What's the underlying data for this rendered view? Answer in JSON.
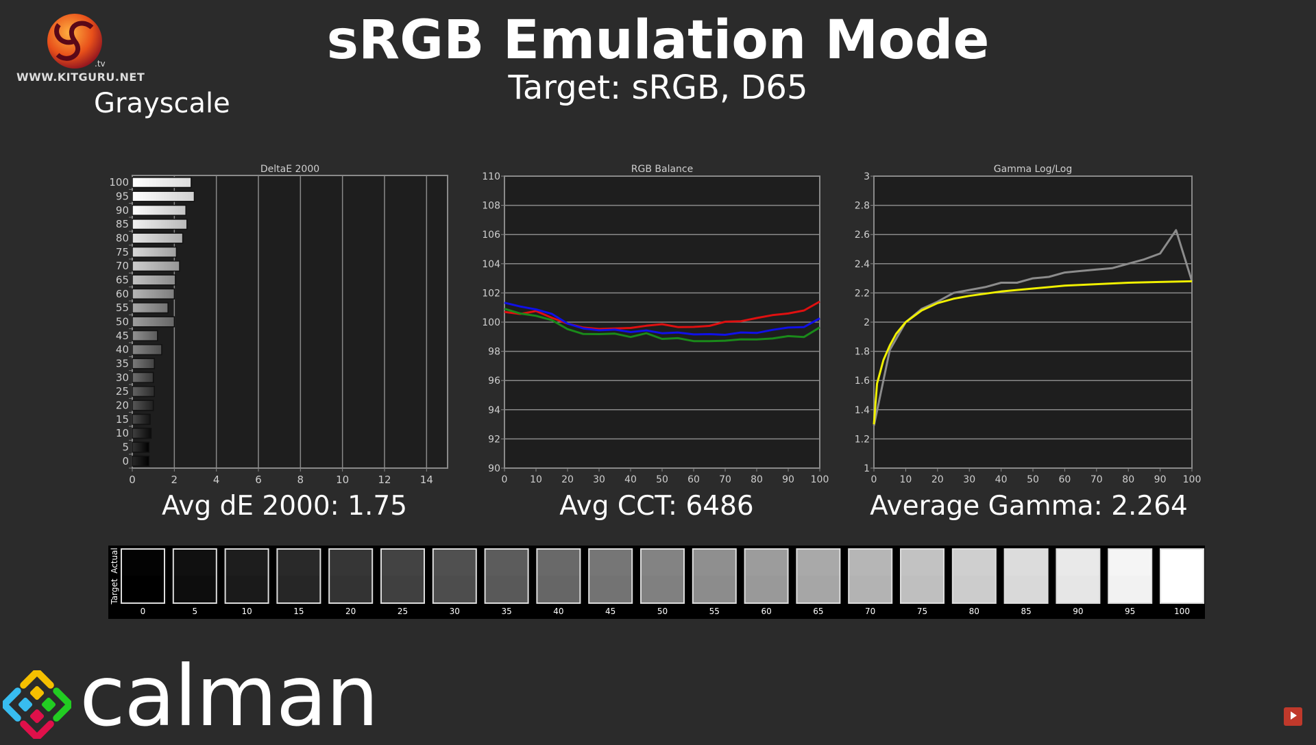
{
  "header": {
    "title": "sRGB Emulation Mode",
    "subtitle": "Target: sRGB, D65",
    "section": "Grayscale",
    "kitguru_url": "WWW.KITGURU.NET",
    "kitguru_tv": ".tv",
    "calman_logo": "calman"
  },
  "stats": {
    "avg_de": "Avg dE 2000: 1.75",
    "avg_cct": "Avg CCT: 6486",
    "avg_gamma": "Average Gamma: 2.264"
  },
  "colors": {
    "background": "#2b2b2b",
    "plot_bg": "#1e1e1e",
    "grid": "#8a8a8a",
    "red": "#e01010",
    "green": "#1a8a1a",
    "blue": "#1010e8",
    "gamma_target": "#f0f000",
    "gamma_actual": "#8c8c8c"
  },
  "chart_data": [
    {
      "type": "bar",
      "title": "DeltaE 2000",
      "orientation": "horizontal",
      "categories": [
        "0",
        "5",
        "10",
        "15",
        "20",
        "25",
        "30",
        "35",
        "40",
        "45",
        "50",
        "55",
        "60",
        "65",
        "70",
        "75",
        "80",
        "85",
        "90",
        "95",
        "100"
      ],
      "values": [
        0.8,
        0.8,
        0.9,
        0.85,
        1.0,
        1.05,
        1.0,
        1.05,
        1.4,
        1.2,
        2.0,
        1.7,
        2.0,
        2.05,
        2.25,
        2.1,
        2.4,
        2.6,
        2.55,
        2.95,
        2.8
      ],
      "xlim": [
        0,
        15
      ],
      "xticks": [
        "0",
        "2",
        "4",
        "6",
        "8",
        "10",
        "12",
        "14"
      ],
      "grid": true
    },
    {
      "type": "line",
      "title": "RGB Balance",
      "x": [
        0,
        5,
        10,
        15,
        20,
        25,
        30,
        35,
        40,
        45,
        50,
        55,
        60,
        65,
        70,
        75,
        80,
        85,
        90,
        95,
        100
      ],
      "series": [
        {
          "name": "Red",
          "color": "#e01010",
          "values": [
            100.7,
            100.56,
            100.76,
            100.3,
            99.9,
            99.63,
            99.53,
            99.57,
            99.6,
            99.75,
            99.86,
            99.66,
            99.67,
            99.74,
            100.03,
            100.06,
            100.28,
            100.48,
            100.59,
            100.8,
            101.41
          ]
        },
        {
          "name": "Green",
          "color": "#1a8a1a",
          "values": [
            100.91,
            100.59,
            100.43,
            100.14,
            99.52,
            99.19,
            99.18,
            99.21,
            98.98,
            99.24,
            98.85,
            98.9,
            98.7,
            98.7,
            98.73,
            98.82,
            98.81,
            98.88,
            99.04,
            98.98,
            99.64
          ]
        },
        {
          "name": "Blue",
          "color": "#1010e8",
          "values": [
            101.33,
            101.07,
            100.87,
            100.57,
            99.9,
            99.57,
            99.44,
            99.49,
            99.32,
            99.43,
            99.24,
            99.29,
            99.16,
            99.18,
            99.13,
            99.29,
            99.26,
            99.47,
            99.63,
            99.66,
            100.26
          ]
        }
      ],
      "xlim": [
        0,
        100
      ],
      "ylim": [
        90,
        110
      ],
      "xticks": [
        "0",
        "10",
        "20",
        "30",
        "40",
        "50",
        "60",
        "70",
        "80",
        "90",
        "100"
      ],
      "yticks": [
        "90",
        "92",
        "94",
        "96",
        "98",
        "100",
        "102",
        "104",
        "106",
        "108",
        "110"
      ],
      "grid": true
    },
    {
      "type": "line",
      "title": "Gamma Log/Log",
      "series": [
        {
          "name": "Actual",
          "color": "#8c8c8c",
          "x": [
            0,
            5,
            10,
            15,
            20,
            25,
            30,
            35,
            40,
            45,
            50,
            55,
            60,
            65,
            70,
            75,
            80,
            85,
            90,
            95,
            100
          ],
          "values": [
            1.29,
            1.81,
            2.0,
            2.09,
            2.14,
            2.2,
            2.22,
            2.24,
            2.27,
            2.27,
            2.3,
            2.31,
            2.34,
            2.35,
            2.36,
            2.37,
            2.4,
            2.43,
            2.47,
            2.63,
            2.28
          ]
        },
        {
          "name": "Target",
          "color": "#f0f000",
          "x": [
            0,
            1,
            2,
            3,
            5,
            7,
            10,
            15,
            20,
            25,
            30,
            40,
            50,
            60,
            70,
            80,
            90,
            100
          ],
          "values": [
            1.3,
            1.58,
            1.66,
            1.74,
            1.84,
            1.92,
            2.0,
            2.08,
            2.13,
            2.16,
            2.18,
            2.21,
            2.23,
            2.25,
            2.26,
            2.27,
            2.275,
            2.28
          ]
        }
      ],
      "xlim": [
        0,
        100
      ],
      "ylim": [
        1,
        3
      ],
      "xticks": [
        "0",
        "10",
        "20",
        "30",
        "40",
        "50",
        "60",
        "70",
        "80",
        "90",
        "100"
      ],
      "yticks": [
        "1",
        "1.2",
        "1.4",
        "1.6",
        "1.8",
        "2",
        "2.2",
        "2.4",
        "2.6",
        "2.8",
        "3"
      ],
      "grid": true
    }
  ],
  "swatches": {
    "row_labels": [
      "Actual",
      "Target"
    ],
    "levels": [
      "0",
      "5",
      "10",
      "15",
      "20",
      "25",
      "30",
      "35",
      "40",
      "45",
      "50",
      "55",
      "60",
      "65",
      "70",
      "75",
      "80",
      "85",
      "90",
      "95",
      "100"
    ]
  }
}
